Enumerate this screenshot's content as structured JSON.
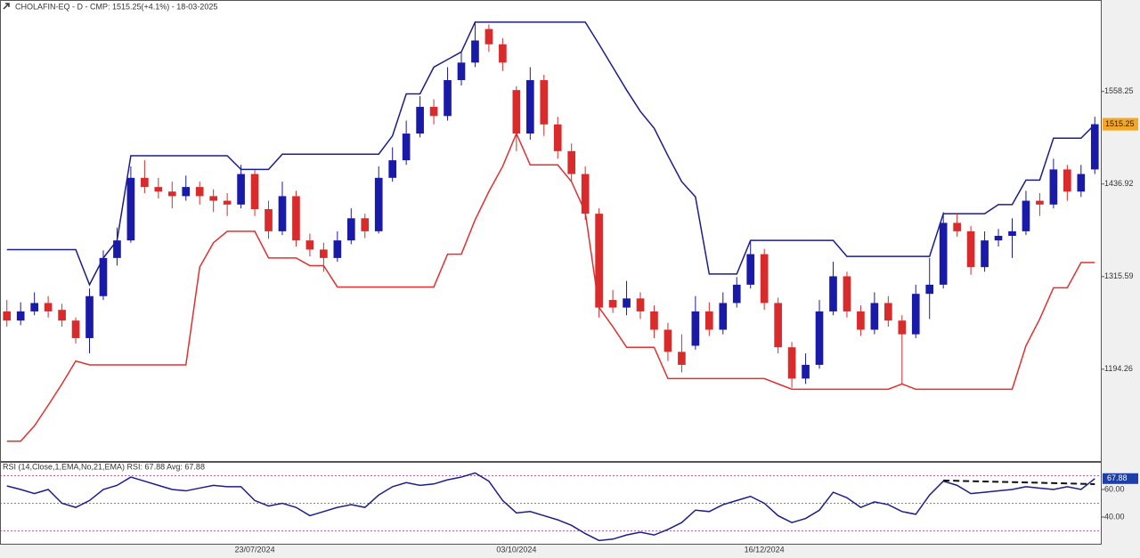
{
  "chart_data": {
    "type": "candlestick",
    "title": "CHOLAFIN-EQ - D - CMP: 1515.25(+4.1%) - 18-03-2025",
    "categories": [
      null,
      null,
      null,
      null,
      null,
      null,
      null,
      null,
      null,
      null,
      null,
      null,
      null,
      null,
      null,
      null,
      null,
      null,
      "23/07/2024",
      null,
      null,
      null,
      null,
      null,
      null,
      null,
      null,
      null,
      null,
      null,
      null,
      null,
      null,
      null,
      null,
      null,
      null,
      "03/10/2024",
      null,
      null,
      null,
      null,
      null,
      null,
      null,
      null,
      null,
      null,
      null,
      null,
      null,
      null,
      null,
      null,
      null,
      "16/12/2024",
      null,
      null,
      null,
      null,
      null,
      null,
      null,
      null,
      null,
      null,
      null,
      null,
      null,
      null,
      null,
      null,
      null,
      null,
      null,
      null,
      null,
      null,
      null,
      null
    ],
    "ohlc": [
      [
        1270,
        1285,
        1250,
        1258
      ],
      [
        1258,
        1282,
        1252,
        1270
      ],
      [
        1270,
        1295,
        1265,
        1281
      ],
      [
        1281,
        1290,
        1262,
        1270
      ],
      [
        1272,
        1280,
        1250,
        1258
      ],
      [
        1258,
        1262,
        1228,
        1235
      ],
      [
        1235,
        1300,
        1215,
        1290
      ],
      [
        1290,
        1350,
        1285,
        1340
      ],
      [
        1340,
        1380,
        1330,
        1363
      ],
      [
        1363,
        1460,
        1360,
        1445
      ],
      [
        1445,
        1468,
        1425,
        1433
      ],
      [
        1433,
        1445,
        1418,
        1427
      ],
      [
        1427,
        1440,
        1405,
        1421
      ],
      [
        1421,
        1448,
        1415,
        1433
      ],
      [
        1433,
        1440,
        1410,
        1421
      ],
      [
        1421,
        1430,
        1400,
        1415
      ],
      [
        1415,
        1425,
        1395,
        1410
      ],
      [
        1410,
        1462,
        1405,
        1450
      ],
      [
        1450,
        1455,
        1395,
        1404
      ],
      [
        1404,
        1415,
        1365,
        1375
      ],
      [
        1375,
        1440,
        1370,
        1421
      ],
      [
        1421,
        1428,
        1355,
        1363
      ],
      [
        1363,
        1372,
        1342,
        1351
      ],
      [
        1351,
        1360,
        1322,
        1340
      ],
      [
        1340,
        1375,
        1335,
        1363
      ],
      [
        1363,
        1405,
        1358,
        1392
      ],
      [
        1392,
        1398,
        1366,
        1375
      ],
      [
        1375,
        1460,
        1372,
        1445
      ],
      [
        1445,
        1485,
        1440,
        1468
      ],
      [
        1468,
        1520,
        1462,
        1503
      ],
      [
        1503,
        1552,
        1498,
        1538
      ],
      [
        1538,
        1548,
        1515,
        1526
      ],
      [
        1526,
        1590,
        1520,
        1573
      ],
      [
        1573,
        1610,
        1566,
        1596
      ],
      [
        1596,
        1650,
        1590,
        1625
      ],
      [
        1640,
        1646,
        1610,
        1620
      ],
      [
        1620,
        1628,
        1585,
        1596
      ],
      [
        1560,
        1565,
        1480,
        1503
      ],
      [
        1503,
        1590,
        1495,
        1573
      ],
      [
        1573,
        1580,
        1500,
        1515
      ],
      [
        1515,
        1525,
        1470,
        1480
      ],
      [
        1480,
        1490,
        1440,
        1450
      ],
      [
        1450,
        1460,
        1390,
        1398
      ],
      [
        1398,
        1405,
        1262,
        1275
      ],
      [
        1285,
        1298,
        1268,
        1275
      ],
      [
        1275,
        1310,
        1265,
        1287
      ],
      [
        1287,
        1295,
        1260,
        1270
      ],
      [
        1270,
        1278,
        1235,
        1246
      ],
      [
        1246,
        1255,
        1205,
        1217
      ],
      [
        1217,
        1240,
        1190,
        1200
      ],
      [
        1225,
        1290,
        1220,
        1270
      ],
      [
        1270,
        1282,
        1238,
        1246
      ],
      [
        1246,
        1295,
        1240,
        1281
      ],
      [
        1281,
        1315,
        1275,
        1305
      ],
      [
        1305,
        1362,
        1300,
        1345
      ],
      [
        1345,
        1352,
        1272,
        1281
      ],
      [
        1281,
        1288,
        1215,
        1223
      ],
      [
        1223,
        1230,
        1170,
        1182
      ],
      [
        1182,
        1215,
        1175,
        1200
      ],
      [
        1200,
        1285,
        1195,
        1270
      ],
      [
        1270,
        1335,
        1265,
        1316
      ],
      [
        1316,
        1322,
        1262,
        1270
      ],
      [
        1270,
        1278,
        1238,
        1246
      ],
      [
        1246,
        1295,
        1240,
        1281
      ],
      [
        1281,
        1290,
        1250,
        1258
      ],
      [
        1258,
        1265,
        1175,
        1240
      ],
      [
        1240,
        1305,
        1235,
        1293
      ],
      [
        1293,
        1340,
        1260,
        1305
      ],
      [
        1305,
        1400,
        1300,
        1386
      ],
      [
        1386,
        1398,
        1368,
        1375
      ],
      [
        1375,
        1382,
        1318,
        1328
      ],
      [
        1328,
        1375,
        1322,
        1363
      ],
      [
        1363,
        1378,
        1355,
        1369
      ],
      [
        1369,
        1392,
        1340,
        1375
      ],
      [
        1375,
        1428,
        1370,
        1415
      ],
      [
        1415,
        1425,
        1395,
        1410
      ],
      [
        1410,
        1470,
        1405,
        1456
      ],
      [
        1456,
        1462,
        1415,
        1427
      ],
      [
        1427,
        1462,
        1420,
        1450
      ],
      [
        1456,
        1525,
        1450,
        1515.25
      ]
    ],
    "up_color": "#1a1aa8",
    "down_color": "#d92b2b",
    "channels": [
      {
        "color": "#1c1c8c",
        "values": [
          1351,
          1351,
          1351,
          1351,
          1351,
          1351,
          1305,
          1340,
          1363,
          1474,
          1474,
          1474,
          1474,
          1474,
          1474,
          1474,
          1474,
          1456,
          1456,
          1456,
          1476,
          1476,
          1476,
          1476,
          1476,
          1476,
          1476,
          1476,
          1500,
          1555,
          1555,
          1590,
          1600,
          1610,
          1649,
          1649,
          1649,
          1649,
          1649,
          1649,
          1649,
          1649,
          1649,
          1620,
          1590,
          1560,
          1532,
          1510,
          1474,
          1440,
          1420,
          1319,
          1319,
          1319,
          1363,
          1363,
          1363,
          1363,
          1363,
          1363,
          1363,
          1342,
          1342,
          1342,
          1342,
          1342,
          1342,
          1342,
          1398,
          1398,
          1398,
          1398,
          1410,
          1410,
          1442,
          1442,
          1497,
          1497,
          1497,
          1515
        ]
      },
      {
        "color": "#e03030",
        "values": [
          1100,
          1100,
          1120,
          1147,
          1175,
          1205,
          1200,
          1200,
          1200,
          1200,
          1200,
          1200,
          1200,
          1200,
          1328,
          1360,
          1375,
          1375,
          1375,
          1340,
          1340,
          1340,
          1330,
          1330,
          1302,
          1302,
          1302,
          1302,
          1302,
          1302,
          1302,
          1302,
          1345,
          1345,
          1390,
          1427,
          1460,
          1503,
          1462,
          1462,
          1462,
          1440,
          1400,
          1275,
          1250,
          1223,
          1223,
          1223,
          1182,
          1182,
          1182,
          1182,
          1182,
          1182,
          1182,
          1182,
          1175,
          1168,
          1168,
          1168,
          1168,
          1168,
          1168,
          1168,
          1168,
          1175,
          1168,
          1168,
          1168,
          1168,
          1168,
          1168,
          1168,
          1168,
          1225,
          1260,
          1301,
          1301,
          1334,
          1334
        ]
      }
    ],
    "ylim": [
      1074,
      1678
    ],
    "yticks": [
      1194.26,
      1315.59,
      1436.92,
      1558.25
    ],
    "rsi": {
      "title": "RSI (14,Close,1,EMA,No,21,EMA) RSI: 67.88 Avg: 67.88",
      "color": "#1c1c8c",
      "values": [
        62.6,
        60,
        57,
        60,
        50,
        47,
        52,
        60,
        63,
        69,
        66,
        63,
        60,
        59,
        61,
        63,
        62,
        62,
        52,
        48,
        50,
        47,
        41,
        44,
        47,
        49,
        47,
        56,
        62,
        65,
        63,
        64,
        67,
        69,
        72,
        66,
        52,
        43,
        44,
        41,
        38,
        34,
        28,
        23,
        24,
        27,
        29,
        27,
        31,
        36,
        45,
        44,
        49,
        52,
        55,
        50,
        41,
        36,
        39,
        45,
        58,
        54,
        47,
        51,
        49,
        44,
        42,
        56,
        66,
        63,
        57,
        58,
        59,
        60,
        62,
        61,
        60,
        62,
        60,
        67.88
      ],
      "ylim": [
        20,
        80
      ],
      "yticks": [
        {
          "value": 40,
          "label": "40.00"
        },
        {
          "value": 60,
          "label": "60.00"
        }
      ],
      "levels": [
        30,
        50,
        70
      ],
      "trendline": [
        66.5,
        63.9
      ]
    }
  }
}
